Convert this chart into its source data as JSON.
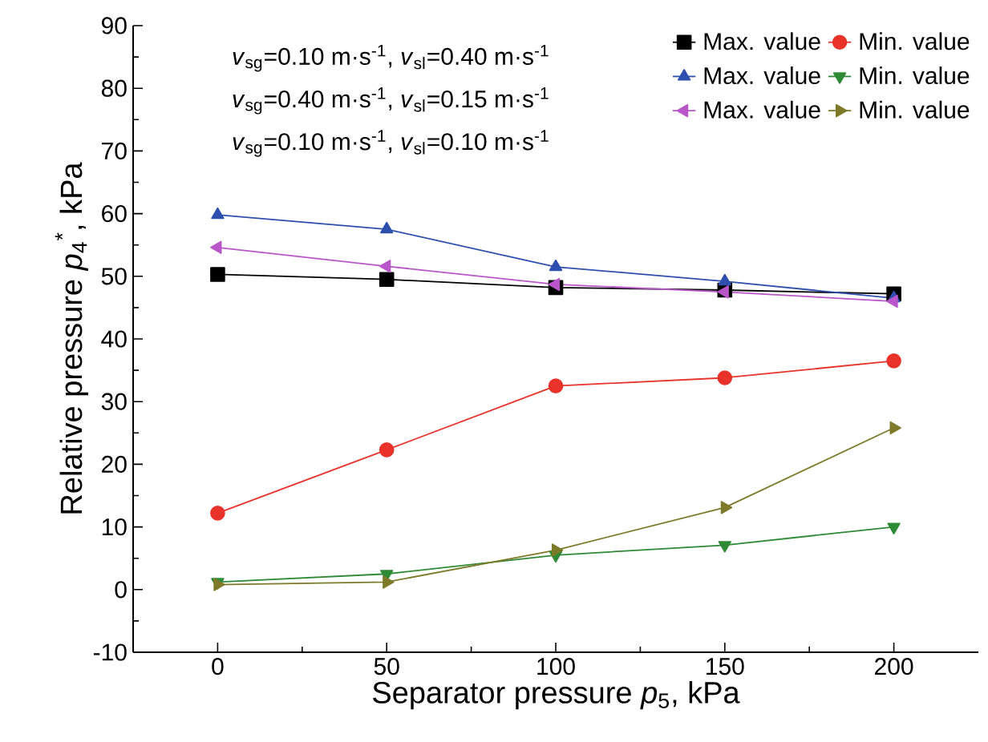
{
  "chart_data": {
    "type": "line",
    "xlabel": "Separator pressure *p*$_{5}$, kPa",
    "ylabel": "Relative pressure *p*$_{4}$$^{*}$, kPa",
    "x": [
      0,
      50,
      100,
      150,
      200
    ],
    "xlim": [
      -25,
      225
    ],
    "ylim": [
      -10,
      90
    ],
    "xticks": [
      0,
      {
        "value": 25,
        "label": null
      },
      50,
      {
        "value": 75,
        "label": null
      },
      100,
      {
        "value": 125,
        "label": null
      },
      150,
      {
        "value": 175,
        "label": null
      },
      200
    ],
    "yticks": [
      -10,
      {
        "value": -5,
        "label": null
      },
      0,
      {
        "value": 5,
        "label": null
      },
      10,
      {
        "value": 15,
        "label": null
      },
      20,
      {
        "value": 25,
        "label": null
      },
      30,
      {
        "value": 35,
        "label": null
      },
      40,
      {
        "value": 45,
        "label": null
      },
      50,
      {
        "value": 55,
        "label": null
      },
      60,
      {
        "value": 65,
        "label": null
      },
      70,
      {
        "value": 75,
        "label": null
      },
      80,
      {
        "value": 85,
        "label": null
      },
      90
    ],
    "legend": "top right",
    "annotations": [
      "*v*$_{sg}$=0.10 m·s$^{-1}$,  *v*$_{sl}$=0.40 m·s$^{-1}$",
      "*v*$_{sg}$=0.40 m·s$^{-1}$,  *v*$_{sl}$=0.15 m·s$^{-1}$",
      "*v*$_{sg}$=0.10 m·s$^{-1}$,  *v*$_{sl}$=0.10 m·s$^{-1}$"
    ],
    "series": [
      {
        "name": "Max. value",
        "color": "#000000",
        "marker": "square",
        "values": [
          50.3,
          49.5,
          48.2,
          47.8,
          47.2
        ]
      },
      {
        "name": "Min. value",
        "color": "#e8322a",
        "marker": "circle",
        "values": [
          12.2,
          22.3,
          32.5,
          33.8,
          36.5
        ]
      },
      {
        "name": "Max. value",
        "color": "#2e4fae",
        "marker": "triangle",
        "values": [
          59.8,
          57.5,
          51.5,
          49.2,
          46.5
        ]
      },
      {
        "name": "Min. value",
        "color": "#2f8a35",
        "marker": "triangle-down",
        "values": [
          1.2,
          2.5,
          5.5,
          7.1,
          10.0
        ]
      },
      {
        "name": "Max. value",
        "color": "#b956c9",
        "marker": "triangle-left",
        "values": [
          54.6,
          51.6,
          48.7,
          47.5,
          46.0
        ]
      },
      {
        "name": "Min. value",
        "color": "#7d7a2a",
        "marker": "triangle-right",
        "values": [
          0.8,
          1.2,
          6.3,
          13.1,
          25.8
        ]
      }
    ]
  }
}
